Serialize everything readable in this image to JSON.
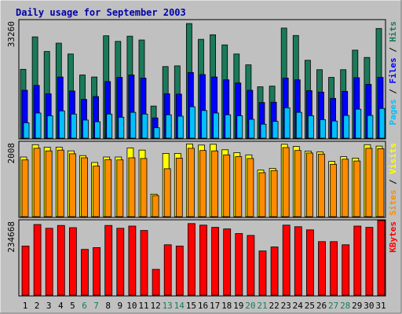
{
  "chart_data": {
    "type": "bar",
    "title": "Daily usage for September 2003",
    "categories": [
      "1",
      "2",
      "3",
      "4",
      "5",
      "6",
      "7",
      "8",
      "9",
      "10",
      "11",
      "12",
      "13",
      "14",
      "15",
      "16",
      "17",
      "18",
      "19",
      "20",
      "21",
      "22",
      "23",
      "24",
      "25",
      "26",
      "27",
      "28",
      "29",
      "30",
      "31"
    ],
    "weekend_days": [
      6,
      7,
      13,
      14,
      20,
      21,
      27,
      28
    ],
    "colors": {
      "hits": "#1a7a5a",
      "files": "#0000ff",
      "pages": "#00bfff",
      "visits": "#ffff00",
      "sites": "#ff8c00",
      "kbytes": "#ff0000",
      "title": "#0000aa",
      "weekend_label": "#1a7a5a",
      "weekday_label": "#000000",
      "panel_bg": "#c0c0c0",
      "panel_border": "#000000"
    },
    "panels": [
      {
        "name": "hits-files-pages",
        "ymax": 33260,
        "ymax_label": "33260",
        "legend": [
          {
            "text": "Pages",
            "color": "#00bfff"
          },
          {
            "text": " / ",
            "color": "#000000"
          },
          {
            "text": "Files",
            "color": "#0000ff"
          },
          {
            "text": " / ",
            "color": "#000000"
          },
          {
            "text": "Hits",
            "color": "#1a7a5a"
          }
        ],
        "series": [
          {
            "name": "Hits",
            "values": [
              19700,
              29000,
              24800,
              27200,
              24100,
              18100,
              17500,
              29300,
              27700,
              29200,
              28100,
              9200,
              20500,
              20700,
              32800,
              28300,
              29600,
              26700,
              24100,
              21000,
              14700,
              14900,
              31500,
              29400,
              22300,
              19600,
              17400,
              19600,
              25200,
              23100,
              31400
            ]
          },
          {
            "name": "Files",
            "values": [
              13700,
              15100,
              12700,
              17500,
              13500,
              11100,
              11900,
              16200,
              17400,
              18100,
              17200,
              5800,
              12700,
              12600,
              18800,
              18200,
              17500,
              16700,
              15800,
              13700,
              10200,
              10300,
              17200,
              16700,
              13600,
              13200,
              11400,
              13400,
              17300,
              15400,
              17400
            ]
          },
          {
            "name": "Pages",
            "values": [
              4400,
              7200,
              6400,
              7800,
              6900,
              5200,
              4700,
              6900,
              6000,
              7400,
              6900,
              3000,
              6700,
              6300,
              9000,
              7900,
              7200,
              6700,
              6400,
              5400,
              4000,
              4800,
              8700,
              7400,
              6400,
              5300,
              4900,
              6500,
              8300,
              6500,
              8500
            ]
          }
        ]
      },
      {
        "name": "visits-sites",
        "ymax": 2008,
        "ymax_label": "2008",
        "legend": [
          {
            "text": "Sites",
            "color": "#ff8c00"
          },
          {
            "text": " / ",
            "color": "#000000"
          },
          {
            "text": "Visits",
            "color": "#ffff00"
          }
        ],
        "series": [
          {
            "name": "Visits",
            "values": [
              1640,
              1980,
              1910,
              1910,
              1810,
              1680,
              1490,
              1640,
              1640,
              1890,
              1830,
              620,
              1740,
              1740,
              2000,
              1970,
              1990,
              1840,
              1760,
              1700,
              1280,
              1330,
              1990,
              1930,
              1800,
              1780,
              1520,
              1650,
              1610,
              1980,
              1940
            ]
          },
          {
            "name": "Sites",
            "values": [
              1560,
              1880,
              1810,
              1830,
              1730,
              1620,
              1390,
              1570,
              1560,
              1620,
              1600,
              580,
              1320,
              1610,
              1880,
              1820,
              1810,
              1700,
              1650,
              1600,
              1210,
              1270,
              1900,
              1820,
              1750,
              1720,
              1440,
              1580,
              1530,
              1880,
              1870
            ]
          }
        ]
      },
      {
        "name": "kbytes",
        "ymax": 234668,
        "ymax_label": "234668",
        "legend": [
          {
            "text": "KBytes",
            "color": "#ff0000"
          }
        ],
        "series": [
          {
            "name": "KBytes",
            "values": [
              158000,
              227000,
              215000,
              224000,
              217000,
              147000,
              153000,
              224000,
              215000,
              222000,
              208000,
              83000,
              162000,
              158000,
              230000,
              225000,
              218000,
              213000,
              198000,
              192000,
              142000,
              155000,
              225000,
              220000,
              210000,
              172000,
              172000,
              162000,
              222000,
              218000,
              240000
            ]
          }
        ]
      }
    ]
  }
}
